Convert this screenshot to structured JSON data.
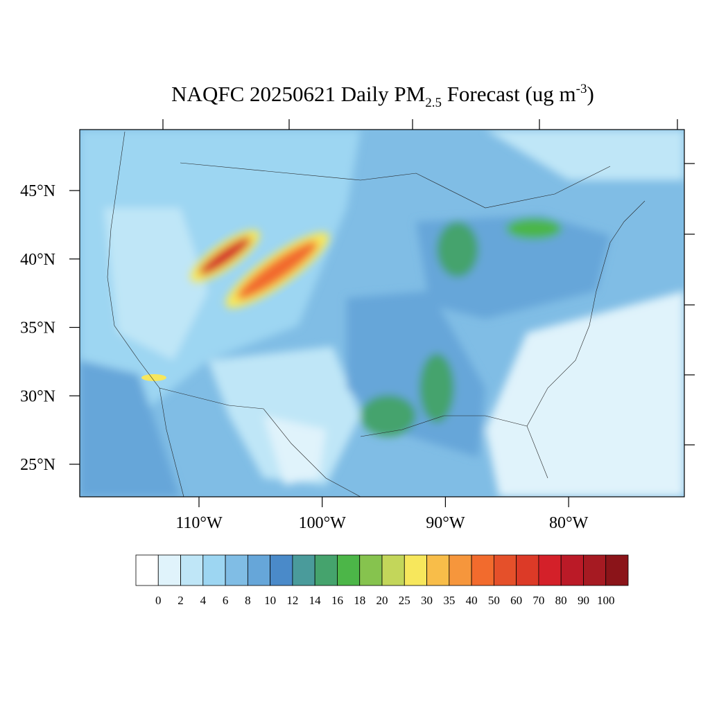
{
  "title": {
    "main": "NAQFC 20250621 Daily PM",
    "sub": "2.5",
    "mid": " Forecast (ug m",
    "sup": "-3",
    "end": ")"
  },
  "lat_ticks": [
    {
      "value": 45,
      "label": "45°N"
    },
    {
      "value": 40,
      "label": "40°N"
    },
    {
      "value": 35,
      "label": "35°N"
    },
    {
      "value": 30,
      "label": "30°N"
    },
    {
      "value": 25,
      "label": "25°N"
    }
  ],
  "lon_ticks": [
    {
      "value": -110,
      "label": "110°W"
    },
    {
      "value": -100,
      "label": "100°W"
    },
    {
      "value": -90,
      "label": "90°W"
    },
    {
      "value": -80,
      "label": "80°W"
    }
  ],
  "colorbar": {
    "levels": [
      0,
      2,
      4,
      6,
      8,
      10,
      12,
      14,
      16,
      18,
      20,
      25,
      30,
      35,
      40,
      50,
      60,
      70,
      80,
      90,
      100
    ],
    "colors": [
      "#ffffff",
      "#e0f3fb",
      "#bfe6f7",
      "#9dd6f2",
      "#80bde5",
      "#66a6d9",
      "#4a8ac9",
      "#4a9b9b",
      "#45a36d",
      "#4cb648",
      "#86c34e",
      "#c3d65a",
      "#f7e75c",
      "#f8bd49",
      "#f6963c",
      "#f26b2d",
      "#e5502a",
      "#dc3a27",
      "#d42029",
      "#bb1a27",
      "#a61a22",
      "#8b1419"
    ]
  }
}
